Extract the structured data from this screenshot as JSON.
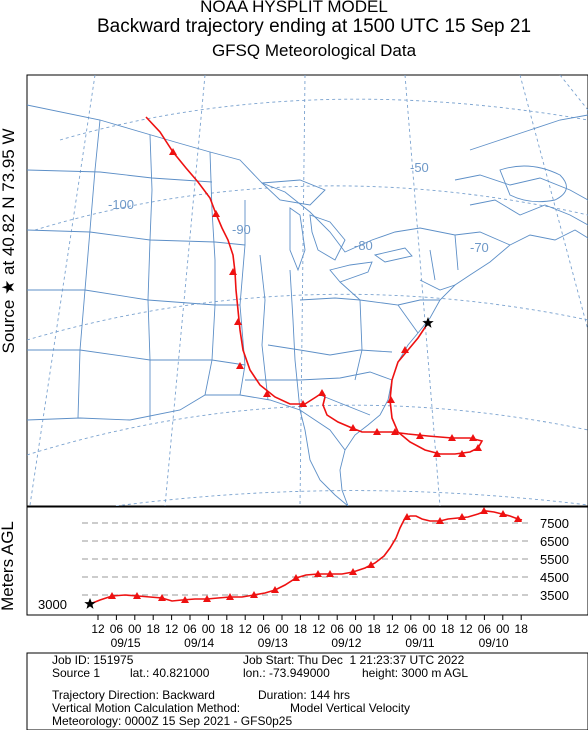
{
  "header": {
    "model": "NOAA HYSPLIT MODEL",
    "title": "Backward trajectory ending at 1500 UTC 15 Sep 21",
    "subtitle": "GFSQ Meteorological Data"
  },
  "source_label": "Source ★ at 40.82 N 73.95 W",
  "map": {
    "longitude_labels": [
      "-100",
      "-90",
      "-80",
      "-70",
      "-50"
    ],
    "trajectory_color": "#ee1111",
    "grid_color": "#7aa2cf",
    "boundary_color": "#5d8fc7"
  },
  "vertical": {
    "axis_label": "Meters AGL",
    "start_label": "3000",
    "levels": [
      "7500",
      "6500",
      "5500",
      "4500",
      "3500"
    ],
    "hour_ticks": [
      "12",
      "06",
      "00",
      "18",
      "12",
      "06",
      "00",
      "18",
      "12",
      "06",
      "00",
      "18",
      "12",
      "06",
      "00",
      "18",
      "12",
      "06",
      "00",
      "18",
      "12",
      "06",
      "00",
      "18"
    ],
    "dates": [
      "09/15",
      "09/14",
      "09/13",
      "09/12",
      "09/11",
      "09/10"
    ]
  },
  "info": {
    "job_id": "Job ID: 151975",
    "job_start": "Job Start: Thu Dec  1 21:23:37 UTC 2022",
    "source": "Source 1",
    "lat": "lat.: 40.821000",
    "lon": "lon.: -73.949000",
    "height": "height: 3000 m AGL",
    "direction": "Trajectory Direction: Backward",
    "duration": "Duration: 144 hrs",
    "vertical_motion": "Vertical Motion Calculation Method:",
    "vertical_motion_value": "Model Vertical Velocity",
    "meteorology": "Meteorology: 0000Z 15 Sep 2021 - GFS0p25"
  }
}
